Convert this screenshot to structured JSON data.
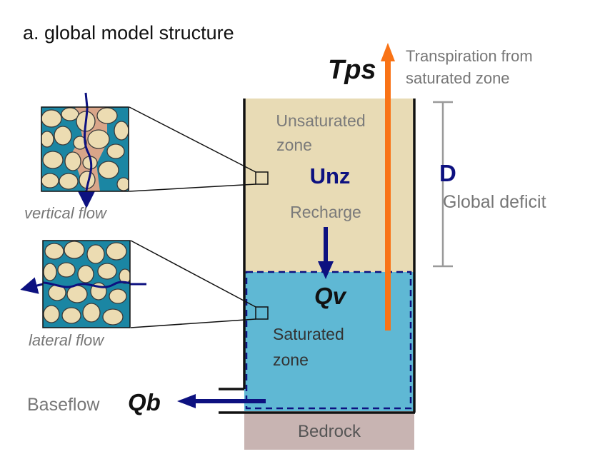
{
  "title": "a. global model structure",
  "labels": {
    "tps": "Tps",
    "transpiration_line1": "Transpiration from",
    "transpiration_line2": "saturated zone",
    "unsat_line1": "Unsaturated",
    "unsat_line2": "zone",
    "unz": "Unz",
    "recharge": "Recharge",
    "qv": "Qv",
    "sat_line1": "Saturated",
    "sat_line2": "zone",
    "d": "D",
    "global_deficit": "Global deficit",
    "baseflow": "Baseflow",
    "qb": "Qb",
    "bedrock": "Bedrock",
    "vertical_flow": "vertical flow",
    "lateral_flow": "lateral flow"
  },
  "colors": {
    "unsaturated": "#e8dbb5",
    "saturated": "#5fb8d4",
    "bedrock": "#c8b4b2",
    "navy": "#0d1180",
    "orange": "#f97316",
    "gray_text": "#777777",
    "deficit_bar": "#9a9a9a",
    "soil_pore_water": "#1b86a3",
    "soil_pore_air": "#d9a589",
    "grain": "#ecdcb2"
  }
}
